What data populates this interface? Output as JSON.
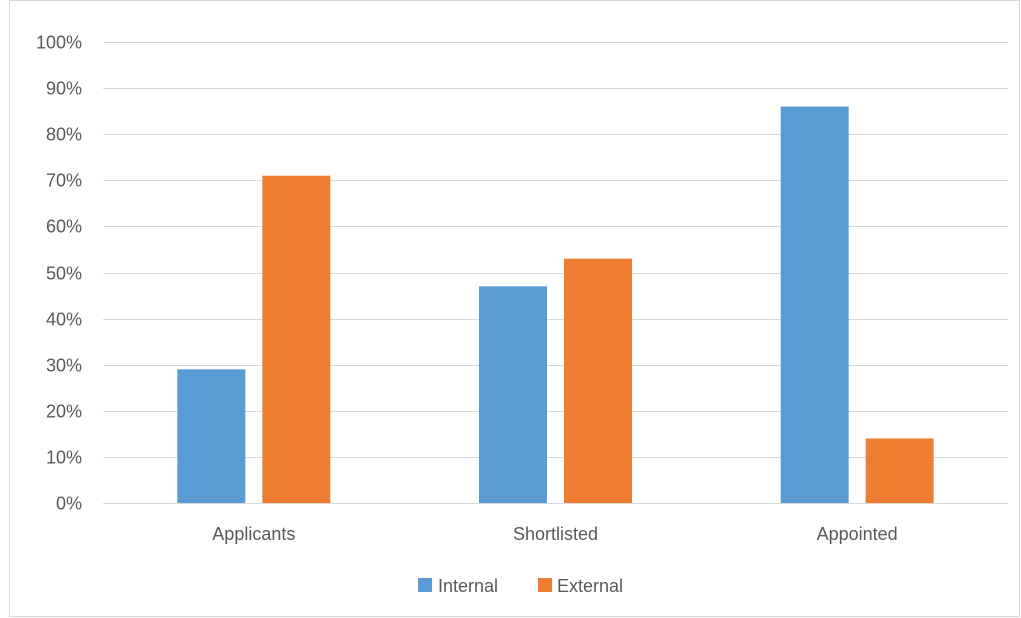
{
  "chart_data": {
    "type": "bar",
    "title": "",
    "xlabel": "",
    "ylabel": "",
    "categories": [
      "Applicants",
      "Shortlisted",
      "Appointed"
    ],
    "series": [
      {
        "name": "Internal",
        "values": [
          29,
          47,
          86
        ],
        "color": "#5b9bd5"
      },
      {
        "name": "External",
        "values": [
          71,
          53,
          14
        ],
        "color": "#ed7d31"
      }
    ],
    "ylim": [
      0,
      100
    ],
    "y_ticks": [
      0,
      10,
      20,
      30,
      40,
      50,
      60,
      70,
      80,
      90,
      100
    ],
    "y_tick_format": "percent",
    "grid": true,
    "gridline_color": "#d9d9d9",
    "legend_position": "bottom"
  }
}
